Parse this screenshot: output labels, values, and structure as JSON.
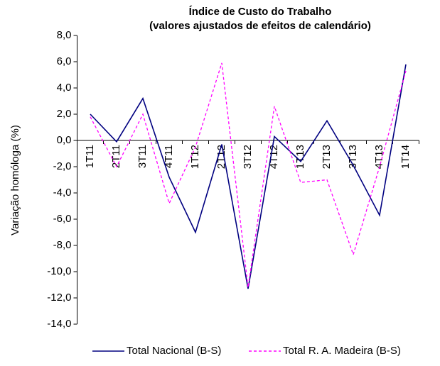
{
  "chart_data": {
    "type": "line",
    "title": [
      "Índice de Custo do Trabalho",
      "(valores ajustados de efeitos de calendário)"
    ],
    "y_label": "Variação homóloga (%)",
    "categories": [
      "1T11",
      "2T11",
      "3T11",
      "4T11",
      "1T12",
      "2T12",
      "3T12",
      "4T12",
      "1T13",
      "2T13",
      "3T13",
      "4T13",
      "1T14"
    ],
    "series": [
      {
        "name": "Total Nacional (B-S)",
        "color": "#000080",
        "dash": false,
        "values": [
          2.0,
          -0.1,
          3.2,
          -2.8,
          -7.0,
          -0.3,
          -11.3,
          0.3,
          -1.6,
          1.5,
          -1.9,
          -5.7,
          5.8
        ]
      },
      {
        "name": "Total R. A. Madeira (B-S)",
        "color": "#ff00ff",
        "dash": true,
        "values": [
          1.8,
          -2.0,
          2.0,
          -4.8,
          -0.5,
          5.9,
          -11.2,
          2.6,
          -3.2,
          -3.0,
          -8.7,
          -2.0,
          5.3
        ]
      }
    ],
    "ylim": [
      -14,
      8
    ],
    "yticks": [
      {
        "value": -14,
        "label": "-14,0"
      },
      {
        "value": -12,
        "label": "-12,0"
      },
      {
        "value": -10,
        "label": "-10,0"
      },
      {
        "value": -8,
        "label": "-8,0"
      },
      {
        "value": -6,
        "label": "-6,0"
      },
      {
        "value": -4,
        "label": "-4,0"
      },
      {
        "value": -2,
        "label": "-2,0"
      },
      {
        "value": 0,
        "label": "0,0"
      },
      {
        "value": 2,
        "label": "2,0"
      },
      {
        "value": 4,
        "label": "4,0"
      },
      {
        "value": 6,
        "label": "6,0"
      },
      {
        "value": 8,
        "label": "8,0"
      }
    ]
  }
}
